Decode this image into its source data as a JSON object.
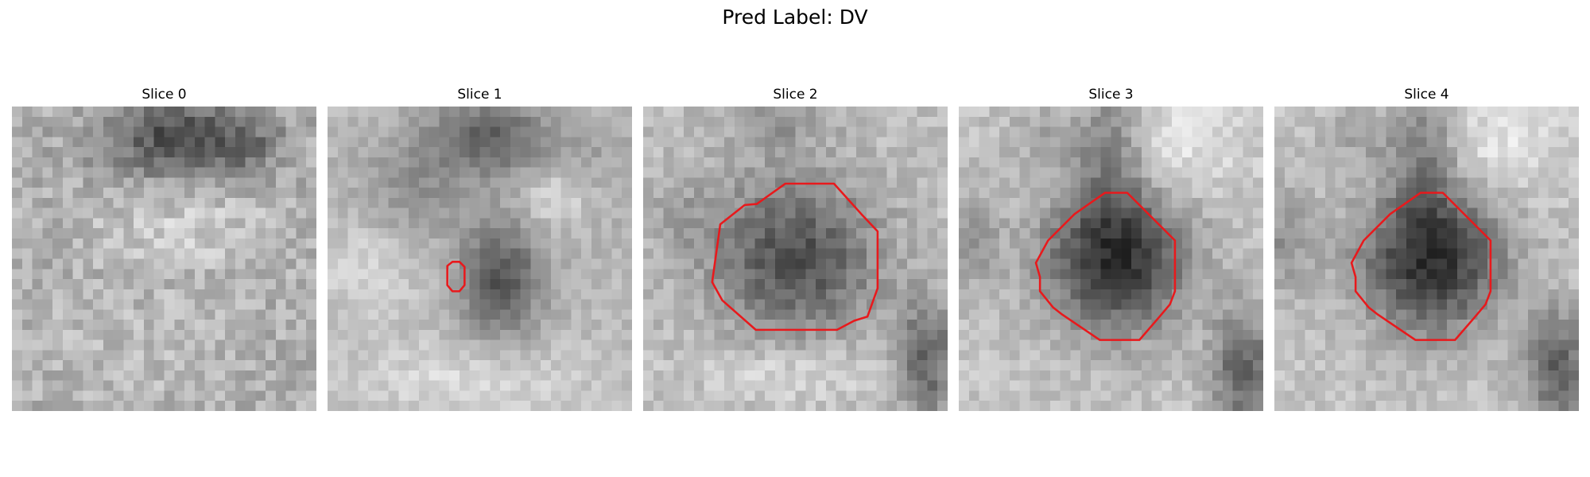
{
  "figure": {
    "title": "Pred Label: DV",
    "contour_color": "#e8191c"
  },
  "panels": [
    {
      "label": "Slice 0",
      "has_contour": false
    },
    {
      "label": "Slice 1",
      "has_contour": true
    },
    {
      "label": "Slice 2",
      "has_contour": true
    },
    {
      "label": "Slice 3",
      "has_contour": true
    },
    {
      "label": "Slice 4",
      "has_contour": true
    }
  ]
}
